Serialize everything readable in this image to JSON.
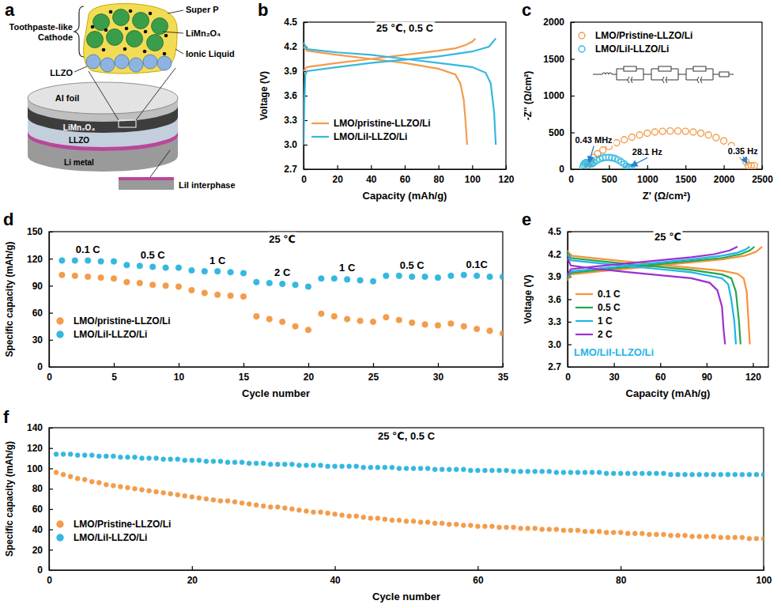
{
  "diagram": {
    "panel": "a",
    "labels": {
      "cathode": "Toothpaste-like Cathode",
      "super_p": "Super P",
      "lmo": "LiMn₂O₄",
      "ionic_liquid": "Ionic Liquid",
      "llzo": "LLZO",
      "al_foil": "Al foil",
      "layer_lmo": "LiMn₂O₄",
      "layer_llzo": "LLZO",
      "li_metal": "Li metal",
      "lii": "LiI interphase"
    }
  },
  "chart_data": [
    {
      "panel": "b",
      "type": "line",
      "x_label": "Capacity (mAh/g)",
      "y_label": "Voltage (V)",
      "xlim": [
        0,
        120
      ],
      "xticks": [
        0,
        20,
        40,
        60,
        80,
        100,
        120
      ],
      "ylim": [
        2.7,
        4.5
      ],
      "yticks": [
        2.7,
        {
          "value": 3,
          "label": "3.0"
        },
        3.3,
        3.6,
        3.9,
        4.2,
        4.5
      ],
      "legend": "lower left",
      "annotations": [
        {
          "text": "25 ℃, 0.5 C",
          "x": 60,
          "y": 4.38
        }
      ],
      "series": [
        {
          "name": "LMO/pristine-LLZO/Li",
          "color": "#f39c4b",
          "x": [
            0,
            2,
            20,
            40,
            60,
            80,
            90,
            96,
            100,
            102,
            null,
            0,
            2,
            20,
            40,
            60,
            80,
            90,
            93,
            95,
            96,
            97
          ],
          "values": [
            3.9,
            3.95,
            4.0,
            4.05,
            4.1,
            4.15,
            4.18,
            4.22,
            4.26,
            4.3,
            null,
            4.2,
            4.15,
            4.1,
            4.05,
            4.0,
            3.93,
            3.86,
            3.75,
            3.55,
            3.3,
            3.0
          ]
        },
        {
          "name": "LMO/LiI-LLZO/Li",
          "color": "#35b8e0",
          "x": [
            0,
            0.5,
            1,
            2,
            20,
            40,
            60,
            80,
            100,
            110,
            114,
            null,
            0,
            2,
            20,
            40,
            60,
            80,
            100,
            108,
            111,
            113,
            114
          ],
          "values": [
            3.0,
            3.5,
            3.85,
            3.9,
            3.95,
            4.0,
            4.04,
            4.08,
            4.14,
            4.2,
            4.3,
            null,
            4.25,
            4.17,
            4.13,
            4.1,
            4.05,
            4.0,
            3.95,
            3.88,
            3.75,
            3.4,
            3.0
          ]
        }
      ]
    },
    {
      "panel": "c",
      "type": "scatter",
      "marker": "open-circle",
      "x_label": "Z' (Ω/cm²)",
      "y_label": "-Z'' (Ω/cm²)",
      "xlim": [
        0,
        2500
      ],
      "xticks": [
        0,
        500,
        1000,
        1500,
        2000,
        2500
      ],
      "ylim": [
        0,
        2000
      ],
      "yticks": [
        0,
        500,
        1000,
        1500,
        2000
      ],
      "legend": "upper left",
      "annotations": [
        {
          "text": "0.43 MHz",
          "x": 300,
          "y": 350,
          "target": [
            230,
            60
          ]
        },
        {
          "text": "28.1 Hz",
          "x": 1000,
          "y": 190,
          "target": [
            760,
            25
          ]
        },
        {
          "text": "0.35 Hz",
          "x": 2250,
          "y": 200,
          "target": [
            2320,
            50
          ]
        }
      ],
      "series": [
        {
          "name": "LMO/Pristine-LLZO/Li",
          "color": "#f39c4b",
          "x": [
            230,
            260,
            300,
            350,
            420,
            500,
            600,
            700,
            800,
            900,
            1000,
            1100,
            1200,
            1300,
            1400,
            1500,
            1600,
            1700,
            1800,
            1900,
            2000,
            2100,
            2200,
            2250,
            2290,
            2320,
            2360,
            2400
          ],
          "values": [
            60,
            110,
            160,
            210,
            260,
            310,
            360,
            400,
            435,
            465,
            490,
            505,
            515,
            520,
            520,
            515,
            505,
            490,
            465,
            430,
            385,
            320,
            230,
            170,
            100,
            50,
            45,
            50
          ]
        },
        {
          "name": "LMO/LiI-LLZO/Li",
          "color": "#35b8e0",
          "x": [
            160,
            170,
            185,
            200,
            220,
            240,
            260,
            280,
            300,
            340,
            380,
            420,
            460,
            500,
            540,
            580,
            620,
            660,
            700,
            730,
            750,
            770,
            790
          ],
          "values": [
            30,
            60,
            80,
            90,
            88,
            80,
            70,
            75,
            90,
            120,
            140,
            155,
            160,
            160,
            155,
            145,
            125,
            100,
            70,
            40,
            25,
            20,
            25
          ]
        }
      ]
    },
    {
      "panel": "d",
      "type": "scatter",
      "marker": "circle",
      "x_label": "Cycle number",
      "y_label": "Specific capacity (mAh/g)",
      "xlim": [
        0,
        35
      ],
      "xticks": [
        0,
        5,
        10,
        15,
        20,
        25,
        30,
        35
      ],
      "ylim": [
        0,
        150
      ],
      "yticks": [
        0,
        30,
        60,
        90,
        120,
        150
      ],
      "legend": "lower left",
      "annotations": [
        {
          "text": "25 ℃",
          "x": 18,
          "y": 138
        },
        {
          "text": "0.1 C",
          "x": 3,
          "y": 126
        },
        {
          "text": "0.5 C",
          "x": 8,
          "y": 120
        },
        {
          "text": "1 C",
          "x": 13,
          "y": 114
        },
        {
          "text": "2 C",
          "x": 18,
          "y": 101
        },
        {
          "text": "1 C",
          "x": 23,
          "y": 106
        },
        {
          "text": "0.5 C",
          "x": 28,
          "y": 109
        },
        {
          "text": "0.1C",
          "x": 33,
          "y": 110
        }
      ],
      "x": [
        1,
        2,
        3,
        4,
        5,
        6,
        7,
        8,
        9,
        10,
        11,
        12,
        13,
        14,
        15,
        16,
        17,
        18,
        19,
        20,
        21,
        22,
        23,
        24,
        25,
        26,
        27,
        28,
        29,
        30,
        31,
        32,
        33,
        34,
        35
      ],
      "series": [
        {
          "name": "LMO/pristine-LLZO/Li",
          "color": "#f39c4b",
          "values": [
            102,
            101,
            100,
            99,
            98,
            94,
            93,
            91,
            90,
            89,
            85,
            82,
            80,
            79,
            78,
            56,
            53,
            50,
            45,
            41,
            59,
            56,
            53,
            51,
            50,
            55,
            52,
            49,
            47,
            46,
            48,
            45,
            42,
            40,
            37
          ]
        },
        {
          "name": "LMO/LiI-LLZO/Li",
          "color": "#35b8e0",
          "values": [
            118,
            118,
            118,
            117,
            117,
            113,
            112,
            111,
            110,
            110,
            107,
            106,
            106,
            105,
            104,
            94,
            93,
            92,
            91,
            89,
            98,
            98,
            97,
            96,
            95,
            101,
            101,
            100,
            100,
            99,
            101,
            102,
            101,
            100,
            100
          ]
        }
      ]
    },
    {
      "panel": "e",
      "type": "line",
      "x_label": "Capacity (mAh/g)",
      "y_label": "Voltage (V)",
      "xlim": [
        0,
        130
      ],
      "xticks": [
        0,
        30,
        60,
        90,
        120
      ],
      "ylim": [
        2.7,
        4.5
      ],
      "yticks": [
        2.7,
        {
          "value": 3,
          "label": "3.0"
        },
        3.3,
        3.6,
        3.9,
        4.2,
        4.5
      ],
      "legend": "lower left",
      "annotations": [
        {
          "text": "25 ℃",
          "x": 65,
          "y": 4.38
        },
        {
          "text": "LMO/LiI-LLZO/Li",
          "x": 30,
          "y": 2.85,
          "color": "#1fb5e8"
        }
      ],
      "series": [
        {
          "name": "0.1 C",
          "color": "#f7923a",
          "x": [
            0,
            2,
            20,
            40,
            60,
            80,
            100,
            115,
            122,
            126,
            null,
            0,
            2,
            20,
            40,
            60,
            80,
            100,
            110,
            114,
            116,
            117,
            118
          ],
          "values": [
            3.85,
            3.93,
            3.97,
            4.01,
            4.05,
            4.09,
            4.13,
            4.18,
            4.23,
            4.3,
            null,
            4.25,
            4.18,
            4.14,
            4.1,
            4.06,
            4.02,
            3.98,
            3.94,
            3.88,
            3.7,
            3.35,
            3.0
          ]
        },
        {
          "name": "0.5 C",
          "color": "#22a84b",
          "x": [
            0,
            2,
            20,
            40,
            60,
            80,
            100,
            112,
            118,
            121,
            null,
            0,
            2,
            20,
            40,
            60,
            80,
            100,
            106,
            109,
            111,
            112
          ],
          "values": [
            3.88,
            3.95,
            3.99,
            4.03,
            4.07,
            4.11,
            4.15,
            4.2,
            4.25,
            4.3,
            null,
            4.22,
            4.15,
            4.11,
            4.07,
            4.03,
            3.99,
            3.93,
            3.88,
            3.7,
            3.3,
            3.0
          ]
        },
        {
          "name": "1 C",
          "color": "#1fb5e8",
          "x": [
            0,
            2,
            20,
            40,
            60,
            80,
            100,
            110,
            115,
            118,
            null,
            0,
            2,
            20,
            40,
            60,
            80,
            100,
            104,
            106,
            108,
            109
          ],
          "values": [
            3.9,
            3.97,
            4.01,
            4.05,
            4.09,
            4.13,
            4.18,
            4.22,
            4.26,
            4.3,
            null,
            4.2,
            4.12,
            4.08,
            4.04,
            4.0,
            3.96,
            3.88,
            3.8,
            3.6,
            3.3,
            3.0
          ]
        },
        {
          "name": "2 C",
          "color": "#9b30d0",
          "x": [
            0,
            2,
            20,
            40,
            60,
            80,
            95,
            105,
            110,
            null,
            0,
            2,
            20,
            40,
            60,
            80,
            92,
            97,
            100,
            101,
            102
          ],
          "values": [
            3.92,
            4.0,
            4.04,
            4.08,
            4.12,
            4.16,
            4.2,
            4.25,
            4.3,
            null,
            4.15,
            4.05,
            4.0,
            3.96,
            3.92,
            3.88,
            3.82,
            3.72,
            3.5,
            3.2,
            3.0
          ]
        }
      ]
    },
    {
      "panel": "f",
      "type": "scatter",
      "marker": "circle",
      "x_label": "Cycle number",
      "y_label": "Specific capacity (mAh/g)",
      "xlim": [
        0,
        100
      ],
      "xticks": [
        0,
        20,
        40,
        60,
        80,
        100
      ],
      "ylim": [
        0,
        140
      ],
      "yticks": [
        0,
        20,
        40,
        60,
        80,
        100,
        120,
        140
      ],
      "legend": "lower left",
      "annotations": [
        {
          "text": "25 ℃, 0.5 C",
          "x": 50,
          "y": 128
        }
      ],
      "x": [
        1,
        2,
        3,
        4,
        5,
        6,
        7,
        8,
        9,
        10,
        11,
        12,
        13,
        14,
        15,
        16,
        17,
        18,
        19,
        20,
        21,
        22,
        23,
        24,
        25,
        26,
        27,
        28,
        29,
        30,
        31,
        32,
        33,
        34,
        35,
        36,
        37,
        38,
        39,
        40,
        41,
        42,
        43,
        44,
        45,
        46,
        47,
        48,
        49,
        50,
        51,
        52,
        53,
        54,
        55,
        56,
        57,
        58,
        59,
        60,
        61,
        62,
        63,
        64,
        65,
        66,
        67,
        68,
        69,
        70,
        71,
        72,
        73,
        74,
        75,
        76,
        77,
        78,
        79,
        80,
        81,
        82,
        83,
        84,
        85,
        86,
        87,
        88,
        89,
        90,
        91,
        92,
        93,
        94,
        95,
        96,
        97,
        98,
        99,
        100
      ],
      "series": [
        {
          "name": "LMO/Pristine-LLZO/Li",
          "color": "#f39c4b",
          "values": [
            96,
            94,
            92,
            90,
            89,
            87,
            86,
            84,
            83,
            82,
            81,
            80,
            79,
            78,
            77,
            76,
            75,
            74,
            73,
            72,
            71,
            70,
            69,
            68,
            68,
            67,
            66,
            65,
            64,
            63,
            62,
            62,
            61,
            60,
            59,
            58,
            57,
            57,
            56,
            55,
            54,
            53,
            53,
            52,
            51,
            51,
            50,
            49,
            49,
            48,
            48,
            47,
            47,
            46,
            46,
            45,
            45,
            44,
            44,
            43,
            43,
            43,
            42,
            42,
            42,
            41,
            41,
            41,
            40,
            40,
            40,
            39,
            39,
            39,
            38,
            38,
            38,
            37,
            37,
            37,
            36,
            36,
            36,
            35,
            35,
            35,
            34,
            34,
            34,
            33,
            33,
            33,
            33,
            32,
            32,
            32,
            32,
            31,
            31,
            31
          ]
        },
        {
          "name": "LMO/LiI-LLZO/Li",
          "color": "#35b8e0",
          "values": [
            114,
            114,
            114,
            113,
            113,
            113,
            112,
            112,
            112,
            111,
            111,
            111,
            110,
            110,
            110,
            109,
            109,
            109,
            108,
            108,
            108,
            107,
            107,
            107,
            106,
            106,
            106,
            105,
            105,
            105,
            104,
            104,
            104,
            104,
            103,
            103,
            103,
            103,
            102,
            102,
            102,
            102,
            102,
            101,
            101,
            101,
            101,
            101,
            100,
            100,
            100,
            100,
            100,
            99,
            99,
            99,
            99,
            99,
            98,
            98,
            98,
            98,
            98,
            98,
            97,
            97,
            97,
            97,
            97,
            97,
            96,
            96,
            96,
            96,
            96,
            96,
            96,
            95,
            95,
            95,
            95,
            95,
            95,
            95,
            95,
            95,
            94,
            94,
            94,
            94,
            94,
            94,
            94,
            94,
            94,
            94,
            94,
            94,
            94,
            94
          ]
        }
      ]
    }
  ]
}
